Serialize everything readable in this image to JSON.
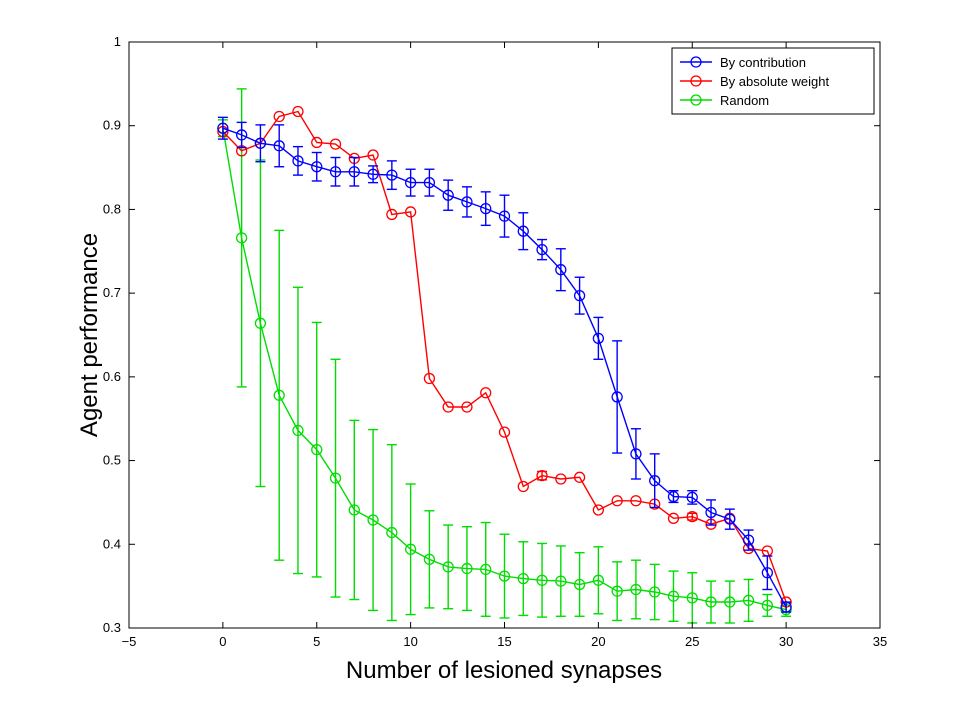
{
  "chart_data": {
    "type": "line",
    "title": "",
    "xlabel": "Number of lesioned synapses",
    "ylabel": "Agent performance",
    "xlim": [
      -5,
      35
    ],
    "ylim": [
      0.3,
      1
    ],
    "xticks": [
      -5,
      0,
      5,
      10,
      15,
      20,
      25,
      30,
      35
    ],
    "yticks": [
      0.3,
      0.4,
      0.5,
      0.6,
      0.7,
      0.8,
      0.9,
      1
    ],
    "xtick_labels": [
      "−5",
      "0",
      "5",
      "10",
      "15",
      "20",
      "25",
      "30",
      "35"
    ],
    "ytick_labels": [
      "0.3",
      "0.4",
      "0.5",
      "0.6",
      "0.7",
      "0.8",
      "0.9",
      "1"
    ],
    "grid": false,
    "legend_position": "top-right",
    "marker": "circle",
    "x": [
      0,
      1,
      2,
      3,
      4,
      5,
      6,
      7,
      8,
      9,
      10,
      11,
      12,
      13,
      14,
      15,
      16,
      17,
      18,
      19,
      20,
      21,
      22,
      23,
      24,
      25,
      26,
      27,
      28,
      29,
      30
    ],
    "series": [
      {
        "name": "By contribution",
        "color": "#0000ff",
        "values": [
          0.897,
          0.889,
          0.879,
          0.876,
          0.858,
          0.851,
          0.845,
          0.845,
          0.842,
          0.841,
          0.832,
          0.832,
          0.817,
          0.809,
          0.801,
          0.792,
          0.774,
          0.752,
          0.728,
          0.697,
          0.646,
          0.576,
          0.508,
          0.476,
          0.457,
          0.456,
          0.438,
          0.43,
          0.405,
          0.366,
          0.325
        ],
        "errors": [
          0.013,
          0.015,
          0.022,
          0.025,
          0.017,
          0.017,
          0.017,
          0.017,
          0.01,
          0.017,
          0.016,
          0.016,
          0.018,
          0.018,
          0.02,
          0.025,
          0.022,
          0.012,
          0.025,
          0.022,
          0.025,
          0.067,
          0.03,
          0.032,
          0.007,
          0.008,
          0.015,
          0.012,
          0.012,
          0.02,
          0.006
        ]
      },
      {
        "name": "By absolute weight",
        "color": "#ff0000",
        "values": [
          0.893,
          0.87,
          0.879,
          0.911,
          0.917,
          0.88,
          0.878,
          0.861,
          0.865,
          0.794,
          0.797,
          0.598,
          0.564,
          0.564,
          0.581,
          0.534,
          0.469,
          0.482,
          0.478,
          0.48,
          0.441,
          0.452,
          0.452,
          0.448,
          0.431,
          0.433,
          0.424,
          0.431,
          0.395,
          0.392,
          0.331
        ],
        "errors": [
          0,
          0,
          0,
          0,
          0,
          0,
          0,
          0,
          0,
          0,
          0,
          0,
          0,
          0,
          0,
          0,
          0,
          0.005,
          0,
          0,
          0,
          0,
          0,
          0,
          0,
          0.004,
          0,
          0,
          0,
          0,
          0
        ]
      },
      {
        "name": "Random",
        "color": "#00dd00",
        "values": [
          0.897,
          0.766,
          0.664,
          0.578,
          0.536,
          0.513,
          0.479,
          0.441,
          0.429,
          0.414,
          0.394,
          0.382,
          0.373,
          0.371,
          0.37,
          0.362,
          0.359,
          0.357,
          0.356,
          0.352,
          0.357,
          0.344,
          0.346,
          0.343,
          0.338,
          0.336,
          0.331,
          0.331,
          0.333,
          0.327,
          0.322
        ],
        "errors": [
          0.01,
          0.178,
          0.195,
          0.197,
          0.171,
          0.152,
          0.142,
          0.107,
          0.108,
          0.105,
          0.078,
          0.058,
          0.05,
          0.05,
          0.056,
          0.05,
          0.044,
          0.044,
          0.042,
          0.038,
          0.04,
          0.035,
          0.035,
          0.033,
          0.03,
          0.03,
          0.025,
          0.025,
          0.025,
          0.013,
          0.008
        ]
      }
    ]
  }
}
